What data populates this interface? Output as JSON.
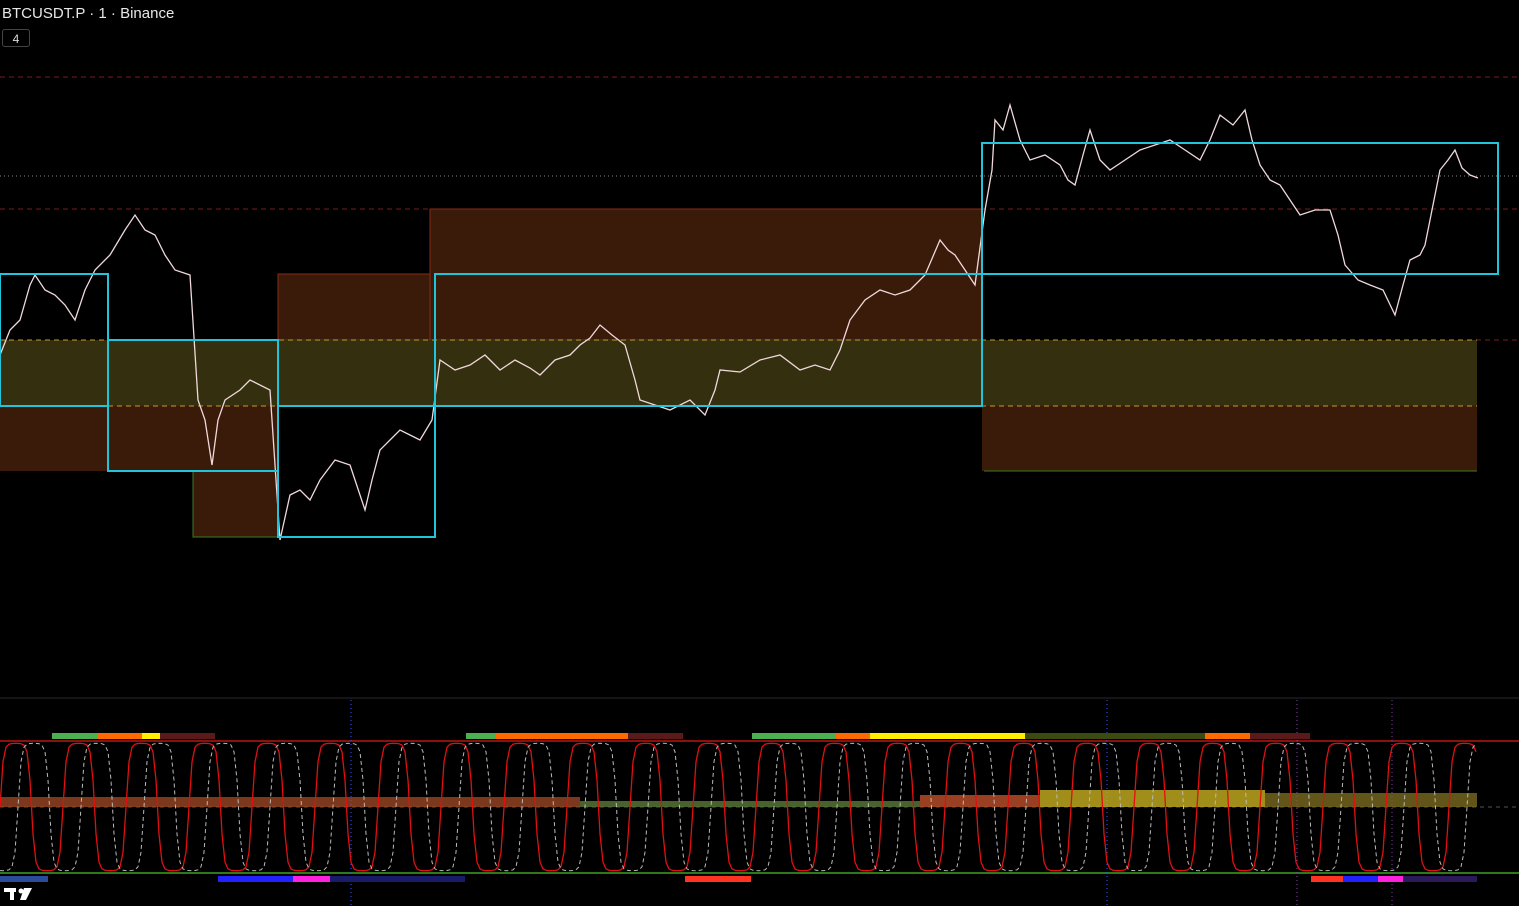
{
  "header": {
    "symbol": "BTCUSDT.P · 1 · Binance",
    "indicator_button": "4"
  }
}
